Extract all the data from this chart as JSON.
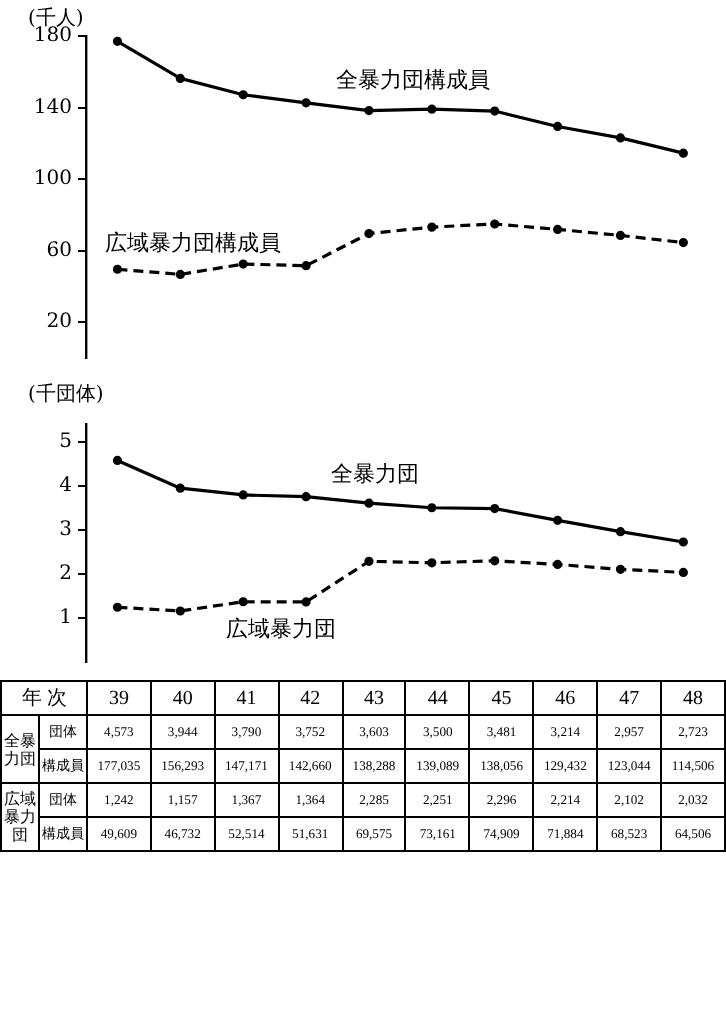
{
  "chart_data": [
    {
      "type": "line",
      "ylabel": "(千人)",
      "categories": [
        "39",
        "40",
        "41",
        "42",
        "43",
        "44",
        "45",
        "46",
        "47",
        "48"
      ],
      "ylim": [
        0,
        180
      ],
      "yticks": [
        20,
        60,
        100,
        140,
        180
      ],
      "tick_labels": "y",
      "grid": false,
      "legend": false,
      "marker": "circle",
      "series": [
        {
          "name": "全暴力団構成員",
          "color": "#000000",
          "line_style": "solid",
          "values": [
            177.035,
            156.293,
            147.171,
            142.66,
            138.288,
            139.089,
            138.056,
            129.432,
            123.044,
            114.506
          ]
        },
        {
          "name": "広域暴力団構成員",
          "color": "#000000",
          "line_style": "dashed",
          "values": [
            49.609,
            46.732,
            52.514,
            51.631,
            69.575,
            73.161,
            74.909,
            71.884,
            68.523,
            64.506
          ]
        }
      ]
    },
    {
      "type": "line",
      "ylabel": "(千団体)",
      "categories": [
        "39",
        "40",
        "41",
        "42",
        "43",
        "44",
        "45",
        "46",
        "47",
        "48"
      ],
      "ylim": [
        0,
        5.4
      ],
      "yticks": [
        1,
        2,
        3,
        4,
        5
      ],
      "tick_labels": "y",
      "grid": false,
      "legend": false,
      "marker": "circle",
      "series": [
        {
          "name": "全暴力団",
          "color": "#000000",
          "line_style": "solid",
          "values": [
            4.573,
            3.944,
            3.79,
            3.752,
            3.603,
            3.5,
            3.481,
            3.214,
            2.957,
            2.723
          ]
        },
        {
          "name": "広域暴力団",
          "color": "#000000",
          "line_style": "dashed",
          "values": [
            1.242,
            1.157,
            1.367,
            1.364,
            2.285,
            2.251,
            2.296,
            2.214,
            2.102,
            2.032
          ]
        }
      ]
    },
    {
      "type": "heatmap",
      "xlabel": "年 次",
      "categories": [
        "39",
        "40",
        "41",
        "42",
        "43",
        "44",
        "45",
        "46",
        "47",
        "48"
      ],
      "y_categories": [
        "団体",
        "構成員",
        "団体",
        "構成員"
      ],
      "annotations": [
        "全暴力団",
        "広域暴力団"
      ],
      "cells": [
        [
          4573,
          3944,
          3790,
          3752,
          3603,
          3500,
          3481,
          3214,
          2957,
          2723
        ],
        [
          177035,
          156293,
          147171,
          142660,
          138288,
          139089,
          138056,
          129432,
          123044,
          114506
        ],
        [
          1242,
          1157,
          1367,
          1364,
          2285,
          2251,
          2296,
          2214,
          2102,
          2032
        ],
        [
          49609,
          46732,
          52514,
          51631,
          69575,
          73161,
          74909,
          71884,
          68523,
          64506
        ]
      ],
      "cell_labels": [
        [
          "4,573",
          "3,944",
          "3,790",
          "3,752",
          "3,603",
          "3,500",
          "3,481",
          "3,214",
          "2,957",
          "2,723"
        ],
        [
          "177,035",
          "156,293",
          "147,171",
          "142,660",
          "138,288",
          "139,089",
          "138,056",
          "129,432",
          "123,044",
          "114,506"
        ],
        [
          "1,242",
          "1,157",
          "1,367",
          "1,364",
          "2,285",
          "2,251",
          "2,296",
          "2,214",
          "2,102",
          "2,032"
        ],
        [
          "49,609",
          "46,732",
          "52,514",
          "51,631",
          "69,575",
          "73,161",
          "74,909",
          "71,884",
          "68,523",
          "64,506"
        ]
      ]
    }
  ]
}
